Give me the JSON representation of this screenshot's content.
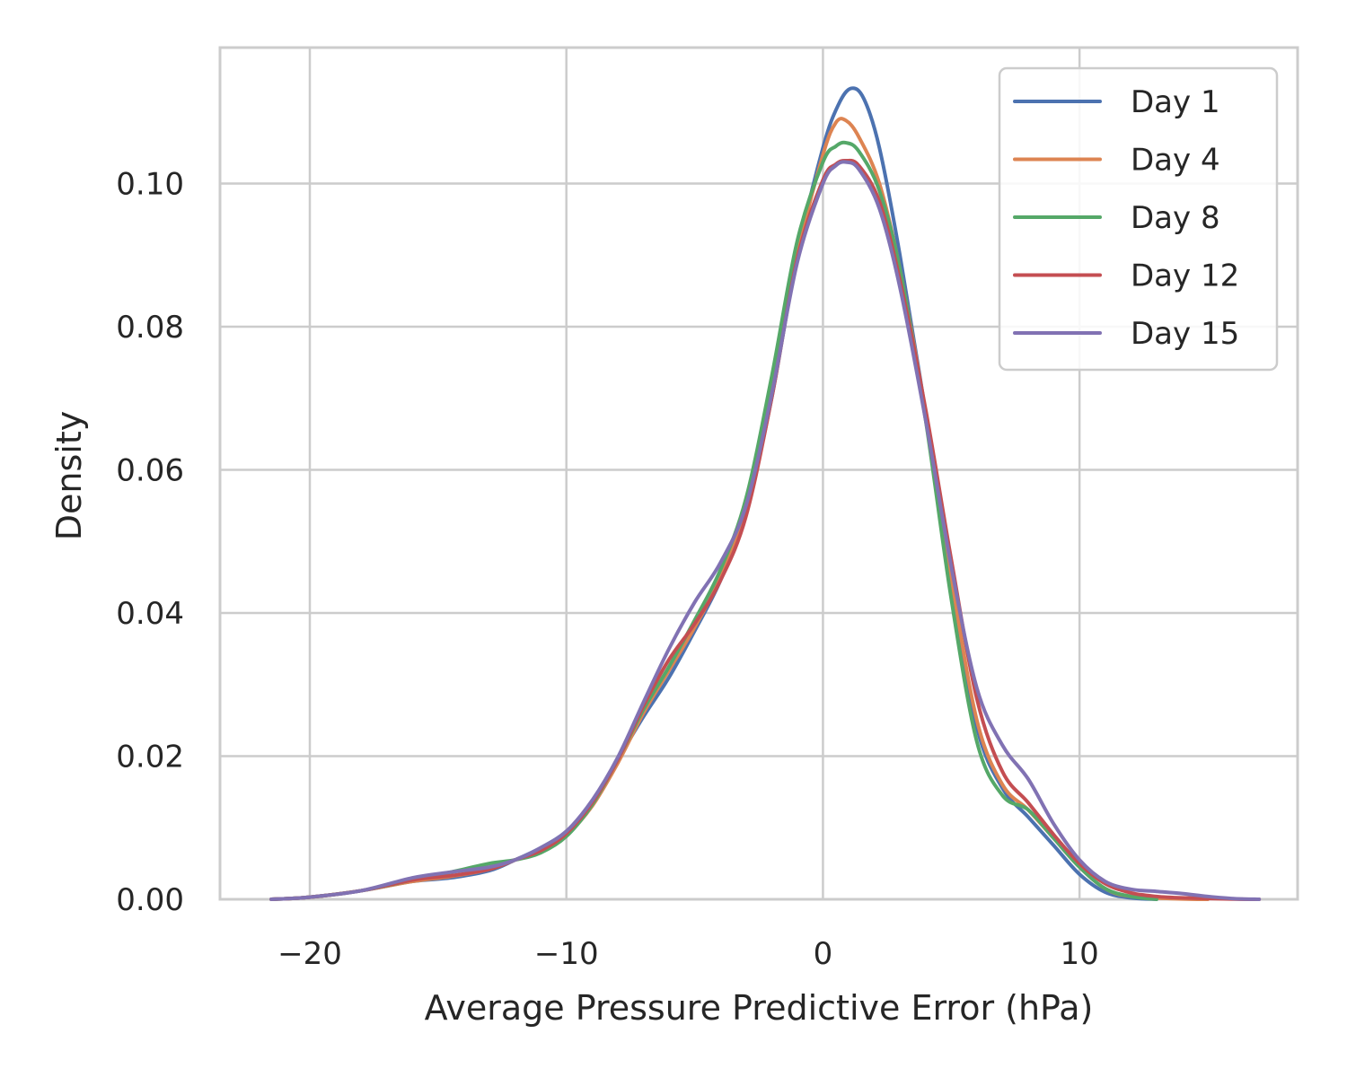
{
  "chart_data": {
    "type": "line",
    "title": "",
    "xlabel": "Average Pressure Predictive Error (hPa)",
    "ylabel": "Density",
    "xlim": [
      -23.5,
      18.5
    ],
    "ylim": [
      0,
      0.119
    ],
    "x_ticks": [
      -20,
      -10,
      0,
      10
    ],
    "x_tick_labels": [
      "−20",
      "−10",
      "0",
      "10"
    ],
    "y_ticks": [
      0.0,
      0.02,
      0.04,
      0.06,
      0.08,
      0.1
    ],
    "y_tick_labels": [
      "0.00",
      "0.02",
      "0.04",
      "0.06",
      "0.08",
      "0.10"
    ],
    "grid": true,
    "legend_position": "top-right",
    "series": [
      {
        "name": "Day 1",
        "color": "#4c72b0",
        "points": [
          [
            -21.5,
            0
          ],
          [
            -20,
            0.0003
          ],
          [
            -18,
            0.0012
          ],
          [
            -16,
            0.0025
          ],
          [
            -14.5,
            0.003
          ],
          [
            -13,
            0.004
          ],
          [
            -12,
            0.0055
          ],
          [
            -11,
            0.0072
          ],
          [
            -10,
            0.0095
          ],
          [
            -9,
            0.0135
          ],
          [
            -8,
            0.0195
          ],
          [
            -7,
            0.0255
          ],
          [
            -6,
            0.031
          ],
          [
            -5,
            0.0375
          ],
          [
            -4,
            0.0445
          ],
          [
            -3,
            0.054
          ],
          [
            -2,
            0.07
          ],
          [
            -1,
            0.09
          ],
          [
            0,
            0.105
          ],
          [
            0.6,
            0.111
          ],
          [
            1.1,
            0.1133
          ],
          [
            1.6,
            0.1118
          ],
          [
            2.2,
            0.105
          ],
          [
            3,
            0.09
          ],
          [
            4,
            0.068
          ],
          [
            5,
            0.044
          ],
          [
            6,
            0.024
          ],
          [
            7,
            0.0155
          ],
          [
            8,
            0.0115
          ],
          [
            9,
            0.0075
          ],
          [
            10,
            0.0035
          ],
          [
            11,
            0.001
          ],
          [
            12,
            0.0002
          ],
          [
            13,
            0
          ]
        ]
      },
      {
        "name": "Day 4",
        "color": "#dd8452",
        "points": [
          [
            -21.5,
            0
          ],
          [
            -20,
            0.0003
          ],
          [
            -18,
            0.0012
          ],
          [
            -16,
            0.0025
          ],
          [
            -14.5,
            0.0032
          ],
          [
            -13,
            0.0042
          ],
          [
            -12,
            0.0055
          ],
          [
            -11,
            0.007
          ],
          [
            -10,
            0.009
          ],
          [
            -9,
            0.013
          ],
          [
            -8,
            0.019
          ],
          [
            -7,
            0.026
          ],
          [
            -6,
            0.032
          ],
          [
            -5,
            0.038
          ],
          [
            -4,
            0.045
          ],
          [
            -3,
            0.055
          ],
          [
            -2,
            0.071
          ],
          [
            -1,
            0.09
          ],
          [
            0,
            0.104
          ],
          [
            0.5,
            0.1085
          ],
          [
            0.9,
            0.1088
          ],
          [
            1.4,
            0.1065
          ],
          [
            2.2,
            0.1
          ],
          [
            3,
            0.088
          ],
          [
            4,
            0.068
          ],
          [
            5,
            0.045
          ],
          [
            6,
            0.025
          ],
          [
            7,
            0.016
          ],
          [
            8,
            0.0125
          ],
          [
            9,
            0.0085
          ],
          [
            10,
            0.0045
          ],
          [
            11,
            0.0015
          ],
          [
            12,
            0.0004
          ],
          [
            14,
            5e-05
          ],
          [
            15,
            0
          ]
        ]
      },
      {
        "name": "Day 8",
        "color": "#55a868",
        "points": [
          [
            -21.5,
            0
          ],
          [
            -20,
            0.0003
          ],
          [
            -18,
            0.0012
          ],
          [
            -16,
            0.0027
          ],
          [
            -14.5,
            0.0038
          ],
          [
            -13,
            0.005
          ],
          [
            -12,
            0.0055
          ],
          [
            -11,
            0.0065
          ],
          [
            -10,
            0.0088
          ],
          [
            -9,
            0.0132
          ],
          [
            -8,
            0.0195
          ],
          [
            -7,
            0.0265
          ],
          [
            -6,
            0.0325
          ],
          [
            -5,
            0.039
          ],
          [
            -4,
            0.046
          ],
          [
            -3,
            0.056
          ],
          [
            -2,
            0.073
          ],
          [
            -1,
            0.092
          ],
          [
            0,
            0.103
          ],
          [
            0.5,
            0.1052
          ],
          [
            0.9,
            0.1057
          ],
          [
            1.4,
            0.1045
          ],
          [
            2.2,
            0.099
          ],
          [
            3,
            0.088
          ],
          [
            4,
            0.067
          ],
          [
            5,
            0.042
          ],
          [
            6,
            0.022
          ],
          [
            7,
            0.0145
          ],
          [
            8,
            0.0125
          ],
          [
            9,
            0.0085
          ],
          [
            10,
            0.0045
          ],
          [
            11,
            0.0015
          ],
          [
            12,
            0.0004
          ],
          [
            13,
            0
          ]
        ]
      },
      {
        "name": "Day 12",
        "color": "#c44e52",
        "points": [
          [
            -21.5,
            0
          ],
          [
            -20,
            0.0003
          ],
          [
            -18,
            0.0012
          ],
          [
            -16,
            0.0027
          ],
          [
            -14.5,
            0.0033
          ],
          [
            -13,
            0.0042
          ],
          [
            -12,
            0.0055
          ],
          [
            -11,
            0.0068
          ],
          [
            -10,
            0.0092
          ],
          [
            -9,
            0.0135
          ],
          [
            -8,
            0.0195
          ],
          [
            -7,
            0.027
          ],
          [
            -6,
            0.0335
          ],
          [
            -5,
            0.0385
          ],
          [
            -4,
            0.0445
          ],
          [
            -3,
            0.0535
          ],
          [
            -2,
            0.07
          ],
          [
            -1,
            0.0895
          ],
          [
            0,
            0.1005
          ],
          [
            0.5,
            0.1027
          ],
          [
            0.9,
            0.1032
          ],
          [
            1.4,
            0.1025
          ],
          [
            2.2,
            0.0975
          ],
          [
            3,
            0.0865
          ],
          [
            4,
            0.0685
          ],
          [
            5,
            0.0475
          ],
          [
            6,
            0.028
          ],
          [
            7,
            0.0178
          ],
          [
            8,
            0.0135
          ],
          [
            9,
            0.009
          ],
          [
            10,
            0.005
          ],
          [
            11,
            0.0022
          ],
          [
            12,
            0.0009
          ],
          [
            13,
            0.0004
          ],
          [
            14,
            0.0002
          ],
          [
            16,
            3e-05
          ],
          [
            17,
            0
          ]
        ]
      },
      {
        "name": "Day 15",
        "color": "#8172b3",
        "points": [
          [
            -21.5,
            0
          ],
          [
            -20,
            0.0003
          ],
          [
            -18,
            0.0012
          ],
          [
            -16,
            0.003
          ],
          [
            -14.5,
            0.0038
          ],
          [
            -13,
            0.0045
          ],
          [
            -12,
            0.0055
          ],
          [
            -11,
            0.0072
          ],
          [
            -10,
            0.0095
          ],
          [
            -9,
            0.0138
          ],
          [
            -8,
            0.0198
          ],
          [
            -7,
            0.0275
          ],
          [
            -6,
            0.035
          ],
          [
            -5,
            0.0415
          ],
          [
            -4,
            0.047
          ],
          [
            -3,
            0.055
          ],
          [
            -2,
            0.0705
          ],
          [
            -1,
            0.089
          ],
          [
            0,
            0.1
          ],
          [
            0.5,
            0.1025
          ],
          [
            0.9,
            0.103
          ],
          [
            1.4,
            0.102
          ],
          [
            2.2,
            0.0965
          ],
          [
            3,
            0.0855
          ],
          [
            4,
            0.067
          ],
          [
            5,
            0.0465
          ],
          [
            6,
            0.0295
          ],
          [
            7,
            0.0215
          ],
          [
            8,
            0.0168
          ],
          [
            9,
            0.0105
          ],
          [
            10,
            0.0055
          ],
          [
            11,
            0.0025
          ],
          [
            12,
            0.0014
          ],
          [
            13,
            0.0011
          ],
          [
            14,
            0.0008
          ],
          [
            15,
            0.0004
          ],
          [
            16,
            0.0001
          ],
          [
            17,
            0
          ]
        ]
      }
    ]
  }
}
